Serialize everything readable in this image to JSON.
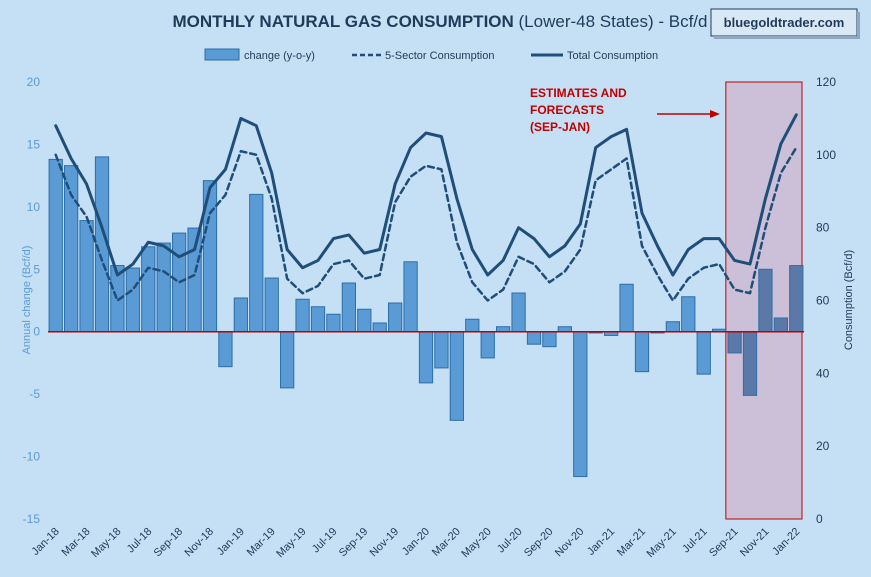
{
  "title": {
    "main": "MONTHLY NATURAL GAS CONSUMPTION",
    "suffix": " (Lower-48 States) - Bcf/d"
  },
  "brand": "bluegoldtrader.com",
  "annotation": {
    "lines": [
      "ESTIMATES AND",
      "FORECASTS",
      "(SEP-JAN)"
    ],
    "color": "#c00000"
  },
  "colors": {
    "bar": "#5b9bd5",
    "bar_forecast": "#5a78a8",
    "line": "#1f4e79",
    "zero_line": "#c00000",
    "left_axis_text": "#5b9bd5",
    "right_axis_text": "#1f3b5a",
    "forecast_fill": "#cdb6cf",
    "forecast_border": "#c00000"
  },
  "chart_data": {
    "type": "bar+line",
    "categories": [
      "Jan-18",
      "Feb-18",
      "Mar-18",
      "Apr-18",
      "May-18",
      "Jun-18",
      "Jul-18",
      "Aug-18",
      "Sep-18",
      "Oct-18",
      "Nov-18",
      "Dec-18",
      "Jan-19",
      "Feb-19",
      "Mar-19",
      "Apr-19",
      "May-19",
      "Jun-19",
      "Jul-19",
      "Aug-19",
      "Sep-19",
      "Oct-19",
      "Nov-19",
      "Dec-19",
      "Jan-20",
      "Feb-20",
      "Mar-20",
      "Apr-20",
      "May-20",
      "Jun-20",
      "Jul-20",
      "Aug-20",
      "Sep-20",
      "Oct-20",
      "Nov-20",
      "Dec-20",
      "Jan-21",
      "Feb-21",
      "Mar-21",
      "Apr-21",
      "May-21",
      "Jun-21",
      "Jul-21",
      "Aug-21",
      "Sep-21",
      "Oct-21",
      "Nov-21",
      "Dec-21",
      "Jan-22"
    ],
    "x_tick_labels": [
      "Jan-18",
      "Mar-18",
      "May-18",
      "Jul-18",
      "Sep-18",
      "Nov-18",
      "Jan-19",
      "Mar-19",
      "May-19",
      "Jul-19",
      "Sep-19",
      "Nov-19",
      "Jan-20",
      "Mar-20",
      "May-20",
      "Jul-20",
      "Sep-20",
      "Nov-20",
      "Jan-21",
      "Mar-21",
      "May-21",
      "Jul-21",
      "Sep-21",
      "Nov-21",
      "Jan-22"
    ],
    "series": [
      {
        "name": "change (y-o-y)",
        "type": "bar",
        "axis": "left",
        "values": [
          13.8,
          13.3,
          8.9,
          14.0,
          5.3,
          5.1,
          6.8,
          7.1,
          7.9,
          8.3,
          12.1,
          -2.8,
          2.7,
          11.0,
          4.3,
          -4.5,
          2.6,
          2.0,
          1.4,
          3.9,
          1.8,
          0.7,
          2.3,
          5.6,
          -4.1,
          -2.9,
          -7.1,
          1.0,
          -2.1,
          0.4,
          3.1,
          -1.0,
          -1.2,
          0.4,
          -11.6,
          -0.1,
          -0.3,
          3.8,
          -3.2,
          -0.1,
          0.8,
          2.8,
          -3.4,
          0.2,
          -1.7,
          -5.1,
          5.0,
          1.1,
          5.3
        ]
      },
      {
        "name": "5-Sector Consumption",
        "type": "line",
        "dash": true,
        "axis": "right",
        "values": [
          100,
          89,
          83,
          71,
          60,
          63,
          69,
          68,
          65,
          67,
          84,
          89,
          101,
          100,
          88,
          66,
          62,
          64,
          70,
          71,
          66,
          67,
          87,
          94,
          97,
          96,
          76,
          65,
          60,
          63,
          72,
          70,
          65,
          68,
          74,
          93,
          96,
          99,
          75,
          67,
          60,
          66,
          69,
          70,
          63,
          62,
          80,
          95,
          102
        ]
      },
      {
        "name": "Total Consumption",
        "type": "line",
        "dash": false,
        "axis": "right",
        "values": [
          108,
          99,
          92,
          80,
          67,
          70,
          76,
          75,
          72,
          74,
          91,
          96,
          110,
          108,
          95,
          74,
          69,
          71,
          77,
          78,
          73,
          74,
          92,
          102,
          106,
          105,
          88,
          74,
          67,
          71,
          80,
          77,
          72,
          75,
          81,
          102,
          105,
          107,
          84,
          75,
          67,
          74,
          77,
          77,
          71,
          70,
          88,
          103,
          111
        ]
      }
    ],
    "ylabel_left": "Annual change (Bcf/d)",
    "ylabel_right": "Consumption (Bcf/d)",
    "ylim_left": [
      -15,
      20
    ],
    "yticks_left": [
      "20",
      "15",
      "10",
      "5",
      "0",
      "-5",
      "-10",
      "-15"
    ],
    "ylim_right": [
      0,
      120
    ],
    "yticks_right": [
      "120",
      "100",
      "80",
      "60",
      "40",
      "20",
      "0"
    ],
    "forecast_range": [
      "Sep-21",
      "Jan-22"
    ],
    "legend_position": "top-center",
    "grid": false
  }
}
